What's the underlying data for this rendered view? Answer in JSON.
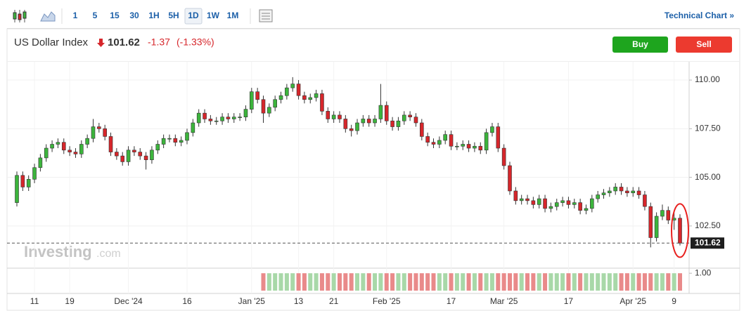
{
  "toolbar": {
    "intervals": [
      "1",
      "5",
      "15",
      "30",
      "1H",
      "5H",
      "1D",
      "1W",
      "1M"
    ],
    "active": "1D",
    "link": "Technical Chart »"
  },
  "header": {
    "name": "US Dollar Index",
    "last": "101.62",
    "change": "-1.37",
    "change_pct": "(-1.33%)",
    "buy": "Buy",
    "sell": "Sell"
  },
  "watermark": {
    "brand": "Investing",
    "suffix": ".com"
  },
  "chart_data": {
    "type": "candlestick",
    "categories": [
      null,
      null,
      null,
      "11",
      null,
      null,
      null,
      null,
      null,
      "19",
      null,
      null,
      null,
      null,
      null,
      null,
      null,
      null,
      null,
      "Dec '24",
      null,
      null,
      null,
      null,
      null,
      null,
      null,
      null,
      null,
      "16",
      null,
      null,
      null,
      null,
      null,
      null,
      null,
      null,
      null,
      null,
      "Jan '25",
      null,
      null,
      null,
      null,
      null,
      null,
      null,
      "13",
      null,
      null,
      null,
      null,
      null,
      "21",
      null,
      null,
      null,
      null,
      null,
      null,
      null,
      null,
      "Feb '25",
      null,
      null,
      null,
      null,
      null,
      null,
      null,
      null,
      null,
      null,
      "17",
      null,
      null,
      null,
      null,
      null,
      null,
      null,
      null,
      "Mar '25",
      null,
      null,
      null,
      null,
      null,
      null,
      null,
      null,
      null,
      null,
      "17",
      null,
      null,
      null,
      null,
      null,
      null,
      null,
      null,
      null,
      null,
      "Apr '25",
      null,
      null,
      null,
      null,
      null,
      null,
      "9",
      null
    ],
    "open": [
      103.7,
      105.1,
      104.5,
      104.9,
      105.5,
      106.0,
      106.5,
      106.7,
      106.8,
      106.4,
      106.3,
      106.2,
      106.7,
      107.0,
      107.6,
      107.5,
      107.1,
      106.3,
      106.1,
      105.8,
      106.4,
      106.3,
      106.1,
      105.9,
      106.4,
      106.7,
      107.0,
      107.0,
      106.8,
      106.9,
      107.3,
      107.8,
      108.3,
      108.0,
      107.9,
      107.9,
      108.1,
      108.0,
      108.1,
      108.1,
      108.5,
      109.4,
      109.0,
      108.3,
      108.6,
      109.0,
      109.2,
      109.6,
      109.8,
      109.2,
      109.0,
      109.1,
      109.3,
      108.4,
      108.0,
      108.2,
      108.0,
      107.5,
      107.4,
      107.8,
      108.0,
      107.8,
      108.0,
      108.7,
      107.9,
      107.6,
      107.9,
      108.2,
      108.1,
      107.8,
      107.1,
      106.8,
      106.7,
      106.9,
      107.2,
      106.6,
      106.6,
      106.7,
      106.5,
      106.6,
      106.4,
      107.3,
      107.6,
      106.5,
      105.6,
      104.3,
      103.8,
      103.9,
      103.8,
      103.6,
      103.9,
      103.4,
      103.5,
      103.7,
      103.8,
      103.6,
      103.7,
      103.3,
      103.4,
      103.9,
      104.1,
      104.2,
      104.3,
      104.5,
      104.3,
      104.2,
      104.3,
      104.1,
      103.5,
      101.9,
      103.0,
      103.3,
      102.8,
      102.9
    ],
    "high": [
      105.3,
      105.3,
      105.1,
      105.7,
      106.2,
      106.7,
      106.9,
      107.0,
      107.0,
      106.6,
      106.5,
      106.9,
      107.2,
      108.0,
      107.8,
      107.7,
      107.3,
      106.5,
      106.3,
      106.6,
      106.6,
      106.5,
      106.3,
      106.6,
      106.9,
      107.2,
      107.2,
      107.2,
      107.1,
      107.5,
      108.0,
      108.5,
      108.5,
      108.2,
      108.1,
      108.3,
      108.3,
      108.3,
      108.3,
      108.7,
      109.6,
      109.6,
      109.2,
      108.8,
      109.2,
      109.4,
      109.8,
      110.15,
      110.0,
      109.4,
      109.3,
      109.5,
      109.5,
      108.6,
      108.4,
      108.4,
      108.2,
      107.7,
      108.0,
      108.2,
      108.2,
      108.2,
      109.8,
      108.9,
      108.1,
      108.1,
      108.4,
      108.4,
      108.3,
      108.0,
      107.3,
      107.0,
      107.1,
      107.4,
      107.4,
      106.8,
      106.9,
      106.9,
      106.8,
      106.8,
      107.5,
      107.8,
      107.8,
      106.7,
      105.8,
      104.5,
      104.1,
      104.1,
      104.0,
      104.1,
      104.1,
      103.7,
      103.9,
      104.0,
      104.0,
      103.9,
      103.9,
      103.6,
      104.1,
      104.3,
      104.4,
      104.5,
      104.7,
      104.7,
      104.5,
      104.5,
      104.5,
      104.3,
      103.7,
      103.2,
      103.6,
      103.5,
      103.3,
      103.1
    ],
    "low": [
      103.5,
      104.3,
      104.3,
      104.7,
      105.3,
      105.8,
      106.3,
      106.5,
      106.2,
      106.1,
      106.0,
      106.0,
      106.5,
      106.8,
      107.3,
      106.9,
      106.1,
      105.9,
      105.6,
      105.6,
      106.1,
      105.9,
      105.4,
      105.7,
      106.2,
      106.5,
      106.8,
      106.6,
      106.6,
      106.7,
      107.1,
      107.6,
      107.8,
      107.7,
      107.7,
      107.7,
      107.8,
      107.8,
      107.9,
      107.9,
      108.3,
      108.8,
      107.8,
      108.1,
      108.4,
      108.8,
      109.0,
      109.4,
      109.0,
      108.8,
      108.8,
      108.9,
      108.2,
      107.8,
      107.8,
      107.8,
      107.3,
      107.1,
      107.2,
      107.6,
      107.6,
      107.6,
      107.8,
      107.7,
      107.4,
      107.4,
      107.7,
      107.9,
      107.6,
      106.9,
      106.6,
      106.5,
      106.5,
      106.7,
      106.4,
      106.4,
      106.4,
      106.3,
      106.3,
      106.2,
      106.2,
      107.1,
      106.3,
      105.4,
      104.1,
      103.6,
      103.6,
      103.6,
      103.4,
      103.4,
      103.2,
      103.2,
      103.3,
      103.5,
      103.4,
      103.4,
      103.1,
      103.1,
      103.2,
      103.7,
      103.9,
      104.0,
      104.1,
      104.1,
      104.0,
      104.0,
      103.9,
      103.3,
      101.4,
      101.7,
      102.8,
      102.6,
      102.3,
      101.5
    ],
    "close": [
      105.1,
      104.5,
      104.9,
      105.5,
      106.0,
      106.5,
      106.7,
      106.8,
      106.4,
      106.3,
      106.2,
      106.7,
      107.0,
      107.6,
      107.5,
      107.1,
      106.3,
      106.1,
      105.8,
      106.4,
      106.3,
      106.1,
      105.9,
      106.4,
      106.7,
      107.0,
      107.0,
      106.8,
      106.9,
      107.3,
      107.8,
      108.3,
      108.0,
      107.9,
      107.9,
      108.1,
      108.0,
      108.1,
      108.1,
      108.5,
      109.4,
      109.0,
      108.3,
      108.6,
      109.0,
      109.2,
      109.6,
      109.8,
      109.2,
      109.0,
      109.1,
      109.3,
      108.4,
      108.0,
      108.2,
      108.0,
      107.5,
      107.4,
      107.8,
      108.0,
      107.8,
      108.0,
      108.7,
      107.9,
      107.6,
      107.9,
      108.2,
      108.1,
      107.8,
      107.1,
      106.8,
      106.7,
      106.9,
      107.2,
      106.6,
      106.6,
      106.7,
      106.5,
      106.6,
      106.4,
      107.3,
      107.6,
      106.5,
      105.6,
      104.3,
      103.8,
      103.9,
      103.8,
      103.6,
      103.9,
      103.4,
      103.5,
      103.7,
      103.8,
      103.6,
      103.7,
      103.3,
      103.4,
      103.9,
      104.1,
      104.2,
      104.3,
      104.5,
      104.3,
      104.2,
      104.3,
      104.1,
      103.5,
      101.9,
      103.0,
      103.3,
      102.8,
      102.9,
      101.62
    ],
    "volume": [
      null,
      null,
      null,
      null,
      null,
      null,
      null,
      null,
      null,
      null,
      null,
      null,
      null,
      null,
      null,
      null,
      null,
      null,
      null,
      null,
      null,
      null,
      null,
      null,
      null,
      null,
      null,
      null,
      null,
      null,
      null,
      null,
      null,
      null,
      null,
      null,
      null,
      null,
      null,
      null,
      null,
      null,
      1,
      1,
      1,
      1,
      1,
      1,
      1,
      1,
      1,
      1,
      1,
      1,
      1,
      1,
      1,
      1,
      1,
      1,
      1,
      1,
      1,
      1,
      1,
      1,
      1,
      1,
      1,
      1,
      1,
      1,
      1,
      1,
      1,
      1,
      1,
      1,
      1,
      1,
      1,
      1,
      1,
      1,
      1,
      1,
      1,
      1,
      1,
      1,
      1,
      1,
      1,
      1,
      1,
      1,
      1,
      1,
      1,
      1,
      1,
      1,
      1,
      1,
      1,
      1,
      1,
      1,
      1,
      1,
      1,
      1,
      1,
      1
    ],
    "ylim": [
      100.33,
      110.94
    ],
    "yticks": [
      {
        "value": 102.5,
        "label": "102.50"
      },
      {
        "value": 105,
        "label": "105.00"
      },
      {
        "value": 107.5,
        "label": "107.50"
      },
      {
        "value": 110,
        "label": "110.00"
      }
    ],
    "vlim": [
      0,
      1.25
    ],
    "vticks": [
      {
        "value": 1,
        "label": "1.00"
      }
    ],
    "up_color": "#3cb43c",
    "down_color": "#d6262b",
    "volume_up_color": "#a8d8a8",
    "volume_down_color": "#e98a8a",
    "grid": true,
    "last_price_line": true
  }
}
